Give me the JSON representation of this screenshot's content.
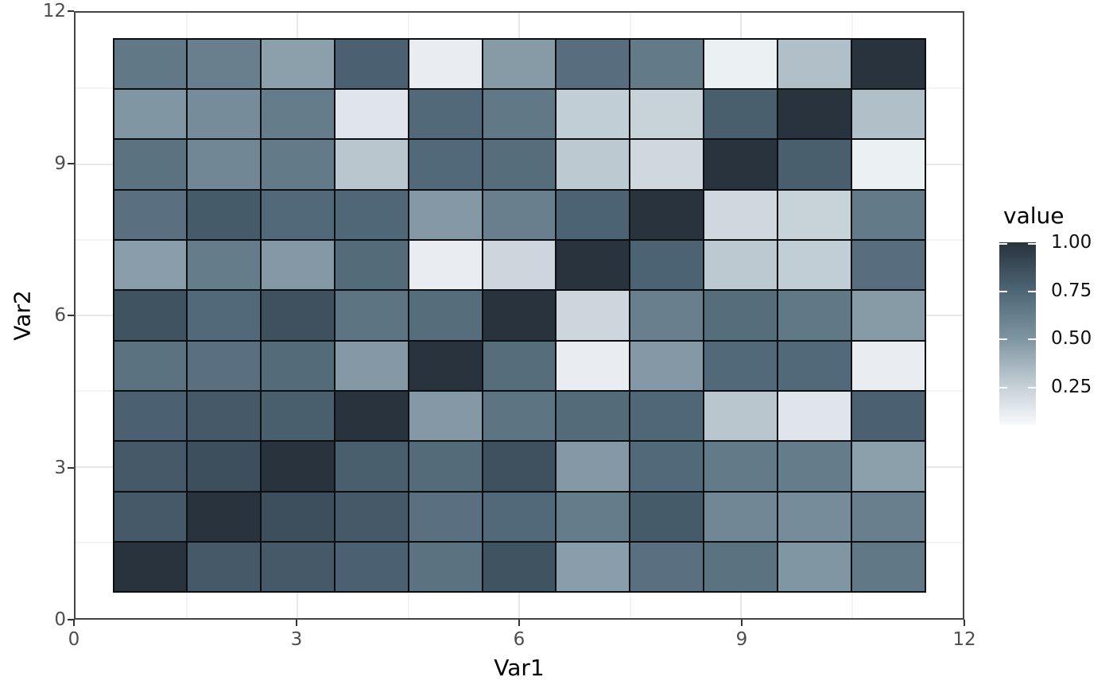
{
  "axes": {
    "x": {
      "title": "Var1",
      "tick_labels": [
        "0",
        "3",
        "6",
        "9",
        "12"
      ],
      "tick_values": [
        0,
        3,
        6,
        9,
        12
      ],
      "range": [
        0,
        12
      ]
    },
    "y": {
      "title": "Var2",
      "tick_labels": [
        "0",
        "3",
        "6",
        "9",
        "12"
      ],
      "tick_values": [
        0,
        3,
        6,
        9,
        12
      ],
      "range": [
        0,
        12
      ]
    }
  },
  "legend": {
    "title": "value",
    "tick_labels": [
      "1.00",
      "0.75",
      "0.50",
      "0.25"
    ],
    "tick_values": [
      1.0,
      0.75,
      0.5,
      0.25
    ],
    "position": "right"
  },
  "colors": {
    "background": "#ffffff",
    "panel_border": "#454545",
    "grid_major": "#e8e8e8",
    "grid_minor": "#f3f3f3",
    "cell_border": "#0b0f12",
    "tick_text": "#4d4d4d",
    "title_text": "#000000",
    "gradient_stops": [
      {
        "value": 0.05,
        "color": "#f8fafc"
      },
      {
        "value": 0.25,
        "color": "#c5d0d7"
      },
      {
        "value": 0.5,
        "color": "#7e94a1"
      },
      {
        "value": 0.75,
        "color": "#4e6575"
      },
      {
        "value": 1.0,
        "color": "#28333d"
      }
    ]
  },
  "chart_data": {
    "type": "heatmap",
    "title": "",
    "xlabel": "Var1",
    "ylabel": "Var2",
    "x_categories": [
      1,
      2,
      3,
      4,
      5,
      6,
      7,
      8,
      9,
      10,
      11
    ],
    "y_categories": [
      1,
      2,
      3,
      4,
      5,
      6,
      7,
      8,
      9,
      10,
      11
    ],
    "value_limits": [
      0.05,
      1.0
    ],
    "legend_title": "value",
    "grid": "major_and_minor",
    "note_row_order": "rows listed bottom-to-top: row index i is Var2=i+1",
    "matrix": [
      [
        1.0,
        0.81,
        0.81,
        0.77,
        0.68,
        0.84,
        0.46,
        0.69,
        0.68,
        0.49,
        0.65
      ],
      [
        0.81,
        1.0,
        0.86,
        0.81,
        0.69,
        0.73,
        0.63,
        0.8,
        0.57,
        0.54,
        0.61
      ],
      [
        0.81,
        0.86,
        1.0,
        0.78,
        0.72,
        0.85,
        0.48,
        0.73,
        0.64,
        0.63,
        0.45
      ],
      [
        0.77,
        0.81,
        0.78,
        1.0,
        0.48,
        0.67,
        0.72,
        0.74,
        0.29,
        0.15,
        0.77
      ],
      [
        0.68,
        0.69,
        0.72,
        0.48,
        1.0,
        0.71,
        0.11,
        0.48,
        0.73,
        0.73,
        0.11
      ],
      [
        0.84,
        0.73,
        0.85,
        0.67,
        0.71,
        1.0,
        0.22,
        0.61,
        0.71,
        0.65,
        0.47
      ],
      [
        0.46,
        0.63,
        0.48,
        0.72,
        0.11,
        0.22,
        1.0,
        0.76,
        0.28,
        0.26,
        0.7
      ],
      [
        0.69,
        0.8,
        0.73,
        0.74,
        0.48,
        0.61,
        0.76,
        1.0,
        0.21,
        0.24,
        0.64
      ],
      [
        0.68,
        0.57,
        0.64,
        0.29,
        0.73,
        0.71,
        0.28,
        0.21,
        1.0,
        0.78,
        0.1
      ],
      [
        0.49,
        0.54,
        0.63,
        0.15,
        0.73,
        0.65,
        0.26,
        0.24,
        0.78,
        1.0,
        0.32
      ],
      [
        0.65,
        0.61,
        0.45,
        0.77,
        0.11,
        0.47,
        0.7,
        0.64,
        0.1,
        0.32,
        1.0
      ]
    ]
  }
}
